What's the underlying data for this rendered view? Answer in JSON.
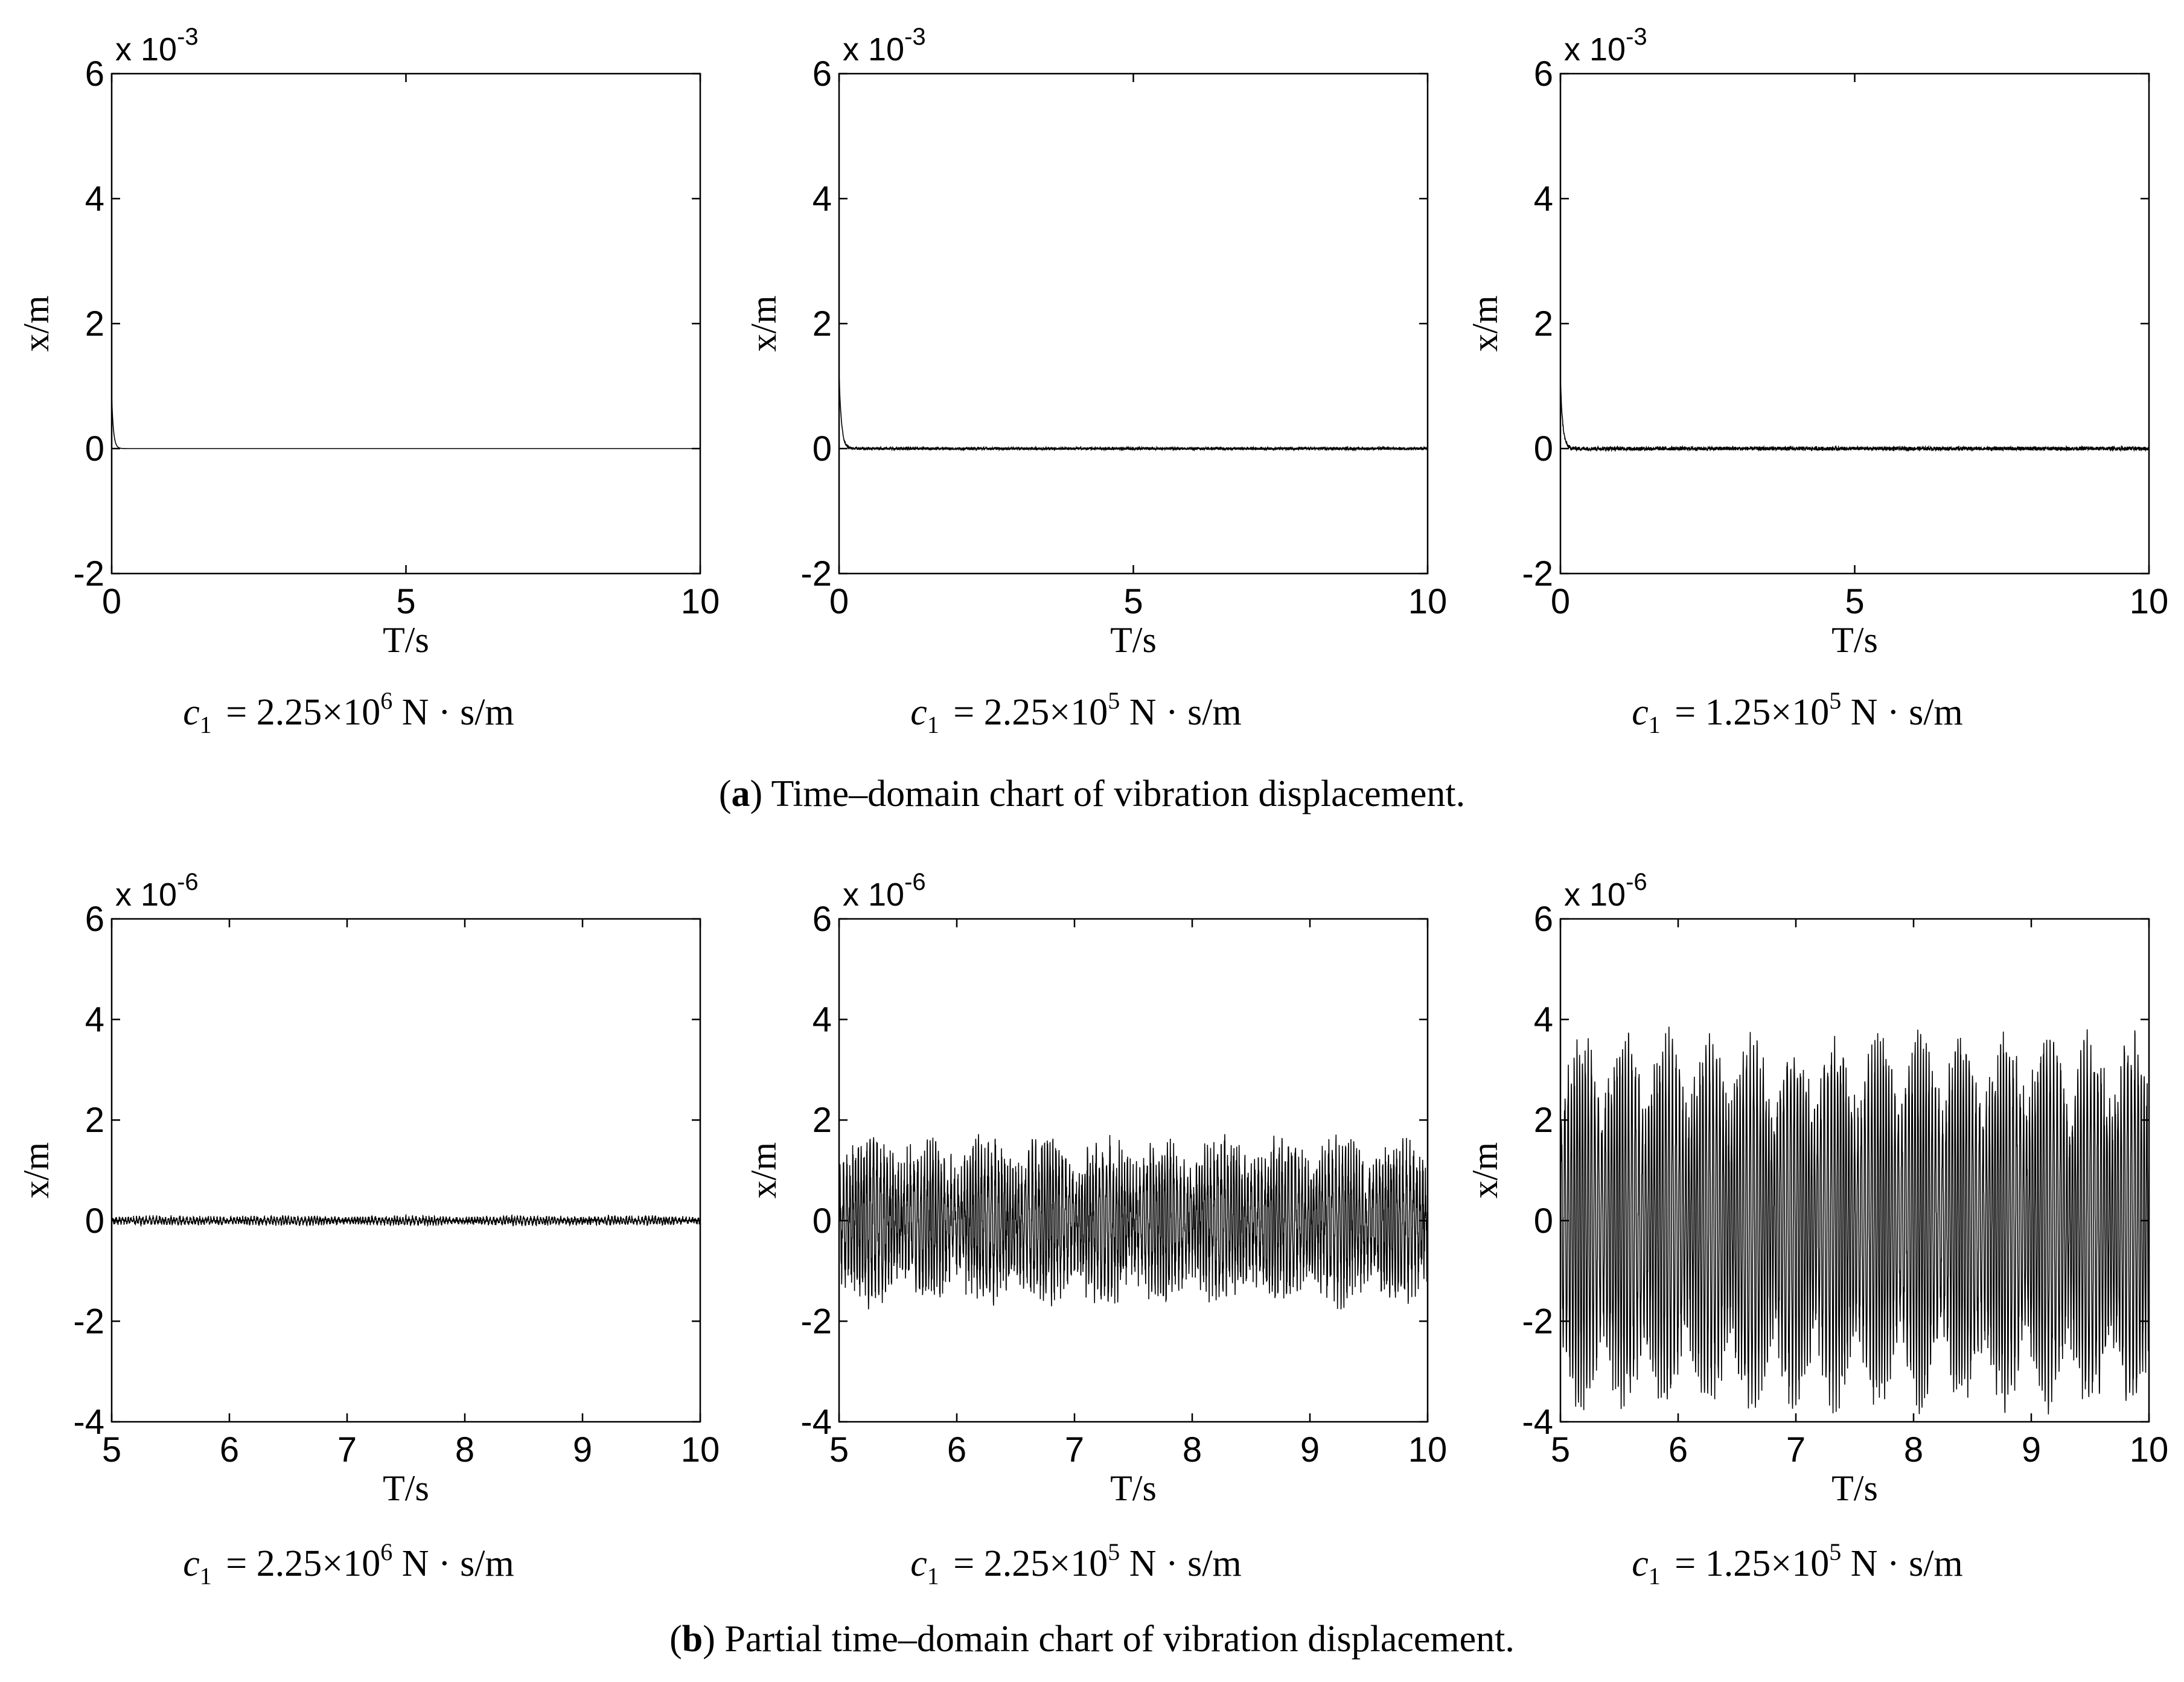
{
  "chart_data": [
    {
      "id": "a1",
      "row": "a",
      "col": 0,
      "type": "line",
      "xlabel": "T/s",
      "ylabel": "x/m",
      "xlim": [
        0,
        10
      ],
      "ylim": [
        -2,
        6
      ],
      "xticks": [
        "0",
        "5",
        "10"
      ],
      "yticks": [
        "-2",
        "0",
        "2",
        "4",
        "6"
      ],
      "exponent_label": "x 10",
      "exponent_power": "-3",
      "caption": {
        "sym": "c",
        "sub": "1",
        "mant": "= 2.25×10",
        "pow": "6",
        "unit": "N · s/m"
      },
      "signal": {
        "type": "decay",
        "x_start": 0,
        "x_end": 10,
        "initial": 0.85,
        "tau": 0.03,
        "noise": 0.0
      }
    },
    {
      "id": "a2",
      "row": "a",
      "col": 1,
      "type": "line",
      "xlabel": "T/s",
      "ylabel": "x/m",
      "xlim": [
        0,
        10
      ],
      "ylim": [
        -2,
        6
      ],
      "xticks": [
        "0",
        "5",
        "10"
      ],
      "yticks": [
        "-2",
        "0",
        "2",
        "4",
        "6"
      ],
      "exponent_label": "x 10",
      "exponent_power": "-3",
      "caption": {
        "sym": "c",
        "sub": "1",
        "mant": "= 2.25×10",
        "pow": "5",
        "unit": "N · s/m"
      },
      "signal": {
        "type": "decay",
        "x_start": 0,
        "x_end": 10,
        "initial": 1.2,
        "tau": 0.04,
        "noise": 0.02
      }
    },
    {
      "id": "a3",
      "row": "a",
      "col": 2,
      "type": "line",
      "xlabel": "T/s",
      "ylabel": "x/m",
      "xlim": [
        0,
        10
      ],
      "ylim": [
        -2,
        6
      ],
      "xticks": [
        "0",
        "5",
        "10"
      ],
      "yticks": [
        "-2",
        "0",
        "2",
        "4",
        "6"
      ],
      "exponent_label": "x 10",
      "exponent_power": "-3",
      "caption": {
        "sym": "c",
        "sub": "1",
        "mant": "= 1.25×10",
        "pow": "5",
        "unit": "N · s/m"
      },
      "signal": {
        "type": "decay",
        "x_start": 0,
        "x_end": 10,
        "initial": 1.1,
        "tau": 0.04,
        "noise": 0.03
      }
    },
    {
      "id": "b1",
      "row": "b",
      "col": 0,
      "type": "line",
      "xlabel": "T/s",
      "ylabel": "x/m",
      "xlim": [
        5,
        10
      ],
      "ylim": [
        -4,
        6
      ],
      "xticks": [
        "5",
        "6",
        "7",
        "8",
        "9",
        "10"
      ],
      "yticks": [
        "-4",
        "-2",
        "0",
        "2",
        "4",
        "6"
      ],
      "exponent_label": "x 10",
      "exponent_power": "-6",
      "caption": {
        "sym": "c",
        "sub": "1",
        "mant": "= 2.25×10",
        "pow": "6",
        "unit": "N · s/m"
      },
      "signal": {
        "type": "vibration",
        "x_start": 5,
        "x_end": 10,
        "amplitude": 0.06,
        "noise": 0.05,
        "beat_period": 1.0
      }
    },
    {
      "id": "b2",
      "row": "b",
      "col": 1,
      "type": "line",
      "xlabel": "T/s",
      "ylabel": "x/m",
      "xlim": [
        5,
        10
      ],
      "ylim": [
        -4,
        6
      ],
      "xticks": [
        "5",
        "6",
        "7",
        "8",
        "9",
        "10"
      ],
      "yticks": [
        "-4",
        "-2",
        "0",
        "2",
        "4",
        "6"
      ],
      "exponent_label": "x 10",
      "exponent_power": "-6",
      "caption": {
        "sym": "c",
        "sub": "1",
        "mant": "= 2.25×10",
        "pow": "5",
        "unit": "N · s/m"
      },
      "signal": {
        "type": "vibration",
        "x_start": 5,
        "x_end": 10,
        "amplitude": 1.3,
        "noise": 0.5,
        "beat_period": 0.5
      }
    },
    {
      "id": "b3",
      "row": "b",
      "col": 2,
      "type": "line",
      "xlabel": "T/s",
      "ylabel": "x/m",
      "xlim": [
        5,
        10
      ],
      "ylim": [
        -4,
        6
      ],
      "xticks": [
        "5",
        "6",
        "7",
        "8",
        "9",
        "10"
      ],
      "yticks": [
        "-4",
        "-2",
        "0",
        "2",
        "4",
        "6"
      ],
      "exponent_label": "x 10",
      "exponent_power": "-6",
      "caption": {
        "sym": "c",
        "sub": "1",
        "mant": "= 1.25×10",
        "pow": "5",
        "unit": "N · s/m"
      },
      "signal": {
        "type": "vibration",
        "x_start": 5,
        "x_end": 10,
        "amplitude": 3.4,
        "noise": 0.5,
        "beat_period": 0.36
      }
    }
  ],
  "row_captions": {
    "a": {
      "open": "(",
      "letter": "a",
      "text": ") Time–domain chart of vibration displacement."
    },
    "b": {
      "open": "(",
      "letter": "b",
      "text": ") Partial time–domain chart of vibration displacement."
    }
  },
  "colors": {
    "line": "#000000",
    "axes": "#000000",
    "background": "#ffffff"
  }
}
